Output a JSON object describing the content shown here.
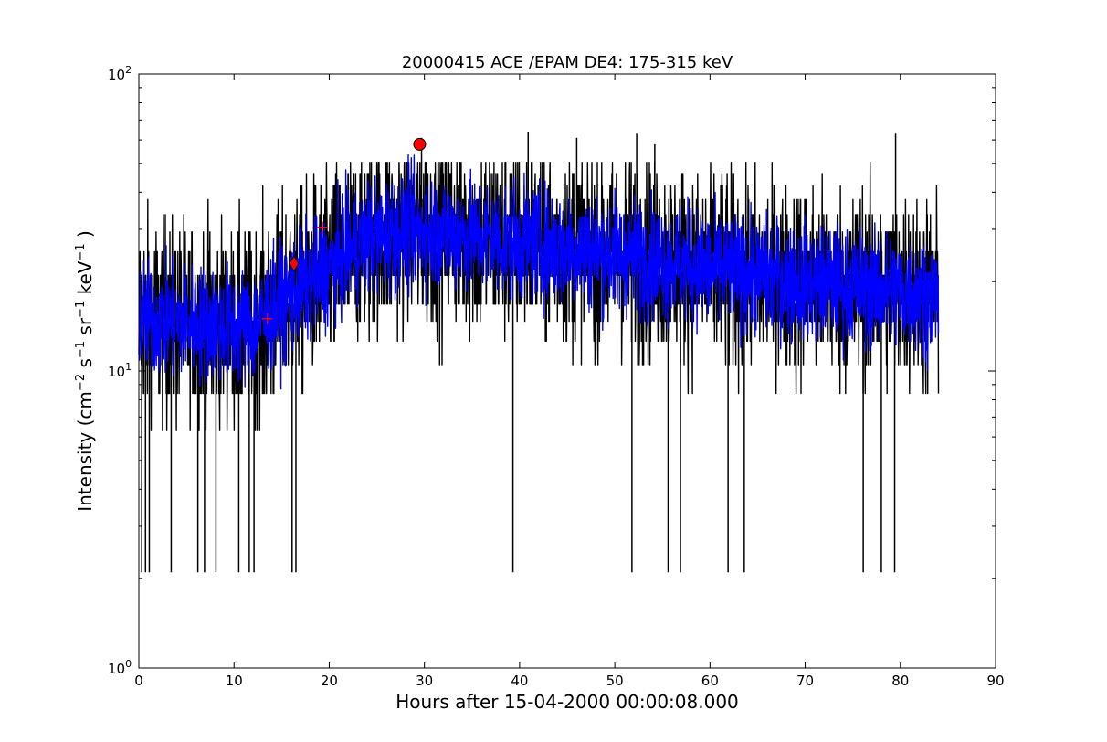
{
  "chart_data": {
    "type": "line",
    "title": "20000415 ACE /EPAM DE4: 175-315 keV",
    "xlabel": "Hours after 15-04-2000 00:00:08.000",
    "ylabel": {
      "base": "Intensity (cm",
      "exp1": "−2",
      "mid1": " s",
      "exp2": "−1",
      "mid2": " sr",
      "exp3": "−1",
      "mid3": " keV",
      "exp4": "−1",
      "end": " )"
    },
    "xlim": [
      0,
      90
    ],
    "ylim": [
      1,
      100
    ],
    "yscale": "log",
    "grid": false,
    "x_ticks": [
      0,
      10,
      20,
      30,
      40,
      50,
      60,
      70,
      80,
      90
    ],
    "x_tick_labels": [
      "0",
      "10",
      "20",
      "30",
      "40",
      "50",
      "60",
      "70",
      "80",
      "90"
    ],
    "y_major_ticks": [
      {
        "value": 1,
        "base": "10",
        "exp": "0"
      },
      {
        "value": 10,
        "base": "10",
        "exp": "1"
      },
      {
        "value": 100,
        "base": "10",
        "exp": "2"
      }
    ],
    "y_minor_ticks": [
      2,
      3,
      4,
      5,
      6,
      7,
      8,
      9,
      20,
      30,
      40,
      50,
      60,
      70,
      80,
      90
    ],
    "series": [
      {
        "color": "#000000",
        "x_range": [
          0,
          84
        ],
        "trend": [
          [
            0,
            15
          ],
          [
            12,
            14
          ],
          [
            16,
            18
          ],
          [
            20,
            22
          ],
          [
            24,
            28
          ],
          [
            30,
            30
          ],
          [
            40,
            27
          ],
          [
            50,
            25
          ],
          [
            60,
            22
          ],
          [
            70,
            20
          ],
          [
            84,
            18
          ]
        ],
        "spikes_down": [
          0.3,
          0.7,
          1.1,
          3.4,
          6.2,
          6.9,
          8.1,
          10.5,
          11.6,
          12.1,
          16.1,
          16.5,
          39.3,
          51.8,
          55.6,
          56.9,
          61.9,
          63.6,
          76.1,
          78.0,
          79.4
        ],
        "spike_down_value": 2.1,
        "spikes_up": [
          29.7,
          40.9,
          46.0,
          52.3,
          79.5,
          54.2
        ],
        "spike_up_values": [
          61,
          64,
          61,
          63,
          63,
          58
        ]
      },
      {
        "color": "#0000ff",
        "x_range": [
          0,
          84
        ],
        "trend": [
          [
            0,
            15
          ],
          [
            12,
            14
          ],
          [
            16,
            18
          ],
          [
            20,
            22
          ],
          [
            24,
            28
          ],
          [
            30,
            30
          ],
          [
            40,
            27
          ],
          [
            50,
            25
          ],
          [
            60,
            22
          ],
          [
            70,
            20
          ],
          [
            84,
            18
          ]
        ]
      }
    ],
    "markers": [
      {
        "type": "circle",
        "x": 29.5,
        "y": 58,
        "color": "#ff0000"
      },
      {
        "type": "diamond",
        "x": 16.3,
        "y": 23,
        "color": "#ff0000"
      },
      {
        "type": "plus",
        "x": 13.5,
        "y": 15,
        "color": "#ff0000"
      },
      {
        "type": "plus",
        "x": 19.3,
        "y": 30.5,
        "color": "#ff0000"
      }
    ]
  }
}
